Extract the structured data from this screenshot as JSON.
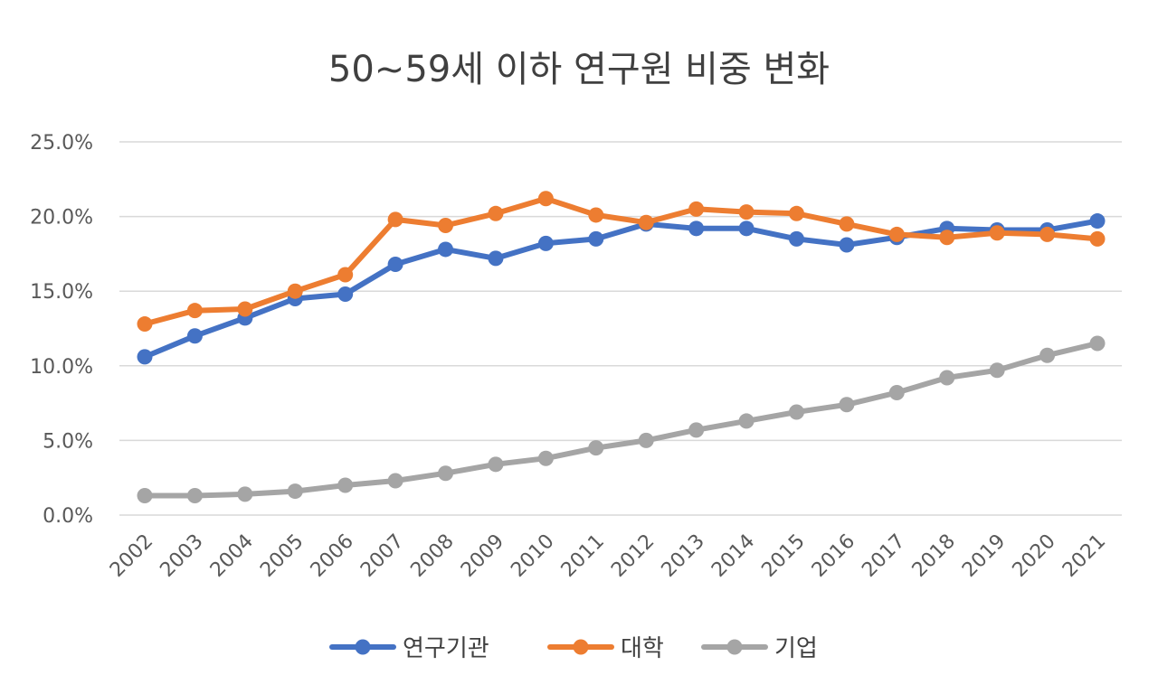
{
  "chart_data": {
    "type": "line",
    "title": "50~59세 이하 연구원 비중 변화",
    "xlabel": "",
    "ylabel": "",
    "categories": [
      "2002",
      "2003",
      "2004",
      "2005",
      "2006",
      "2007",
      "2008",
      "2009",
      "2010",
      "2011",
      "2012",
      "2013",
      "2014",
      "2015",
      "2016",
      "2017",
      "2018",
      "2019",
      "2020",
      "2021"
    ],
    "y_ticks": [
      "0.0%",
      "5.0%",
      "10.0%",
      "15.0%",
      "20.0%",
      "25.0%"
    ],
    "ylim": [
      0,
      25
    ],
    "grid": true,
    "legend_position": "bottom",
    "series": [
      {
        "name": "연구기관",
        "color": "#4472c4",
        "values": [
          10.6,
          12.0,
          13.2,
          14.5,
          14.8,
          16.8,
          17.8,
          17.2,
          18.2,
          18.5,
          19.5,
          19.2,
          19.2,
          18.5,
          18.1,
          18.6,
          19.2,
          19.1,
          19.1,
          19.7
        ]
      },
      {
        "name": "대학",
        "color": "#ed7d31",
        "values": [
          12.8,
          13.7,
          13.8,
          15.0,
          16.1,
          19.8,
          19.4,
          20.2,
          21.2,
          20.1,
          19.6,
          20.5,
          20.3,
          20.2,
          19.5,
          18.8,
          18.6,
          18.9,
          18.8,
          18.5
        ]
      },
      {
        "name": "기업",
        "color": "#a5a5a5",
        "values": [
          1.3,
          1.3,
          1.4,
          1.6,
          2.0,
          2.3,
          2.8,
          3.4,
          3.8,
          4.5,
          5.0,
          5.7,
          6.3,
          6.9,
          7.4,
          8.2,
          9.2,
          9.7,
          10.7,
          11.5
        ]
      }
    ]
  }
}
